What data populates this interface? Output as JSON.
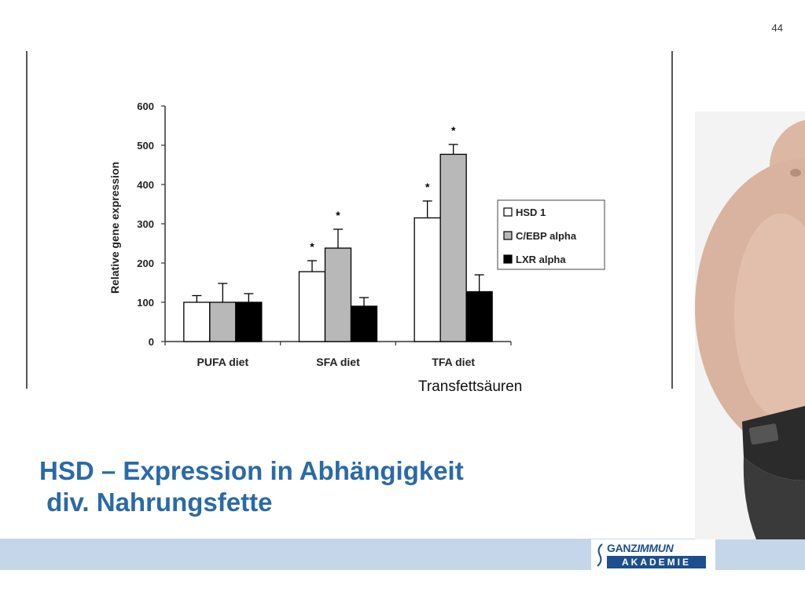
{
  "slide_number": "44",
  "title_lines": [
    "HSD – Expression in Abhängigkeit",
    " div. Nahrungsfette"
  ],
  "caption": "Transfettsäuren",
  "logo": {
    "line1_a": "GANZ",
    "line1_b": "IMMUN",
    "line2": "AKADEMIE"
  },
  "colors": {
    "title": "#2a6aa6",
    "band": "#c6d6ea",
    "series": [
      "#ffffff",
      "#b8b8b8",
      "#000000"
    ]
  },
  "chart_data": {
    "type": "bar",
    "categories": [
      "PUFA diet",
      "SFA diet",
      "TFA diet"
    ],
    "series": [
      {
        "name": "HSD 1",
        "values": [
          100,
          178,
          315
        ],
        "errors": [
          17,
          28,
          43
        ]
      },
      {
        "name": "C/EBP alpha",
        "values": [
          100,
          238,
          477
        ],
        "errors": [
          48,
          48,
          25
        ]
      },
      {
        "name": "LXR alpha",
        "values": [
          100,
          90,
          127
        ],
        "errors": [
          22,
          22,
          43
        ]
      }
    ],
    "significance": [
      [
        false,
        true,
        true
      ],
      [
        false,
        true,
        true
      ],
      [
        false,
        false,
        false
      ]
    ],
    "significance_mark": "*",
    "ylabel": "Relative gene expression",
    "xlabel": "",
    "ylim": [
      0,
      600
    ],
    "yticks": [
      0,
      100,
      200,
      300,
      400,
      500,
      600
    ],
    "legend_position": "right"
  }
}
